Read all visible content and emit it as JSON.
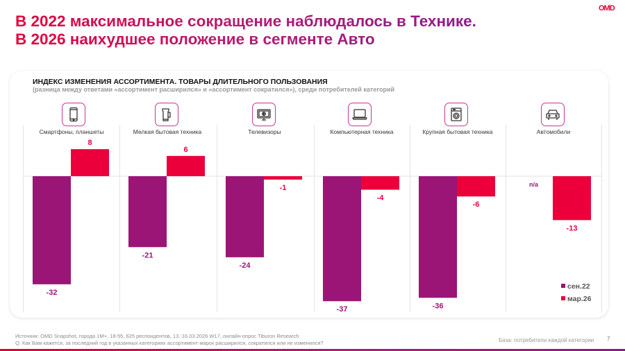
{
  "header": {
    "title_line1": "В 2022 максимальное сокращение наблюдалось в Технике.",
    "title_line2": "В 2026 наихудшее положение в сегменте Авто",
    "logo": "OMD"
  },
  "colors": {
    "sep22": "#9b1576",
    "mar26": "#ec003c",
    "icon_border": "#c7378f"
  },
  "chart_data": {
    "type": "bar",
    "title": "ИНДЕКС ИЗМЕНЕНИЯ АССОРТИМЕНТА. ТОВАРЫ ДЛИТЕЛЬНОГО ПОЛЬЗОВАНИЯ",
    "subtitle": "(разница между ответами «ассортимент расширился» и «ассортимент сократился»), среди потребителей категорий",
    "categories": [
      "Смартфоны, планшеты",
      "Мелкая бытовая техника",
      "Телевизоры",
      "Компьютерная техника",
      "Крупная бытовая техника",
      "Автомобили"
    ],
    "category_icons": [
      "smartphone-icon",
      "kettle-icon",
      "tv-icon",
      "laptop-icon",
      "washing-machine-icon",
      "car-icon"
    ],
    "series": [
      {
        "name": "сен.22",
        "values": [
          -32,
          -21,
          -24,
          -37,
          -36,
          null
        ],
        "labels": [
          "-32",
          "-21",
          "-24",
          "-37",
          "-36",
          "n/a"
        ]
      },
      {
        "name": "мар.26",
        "values": [
          8,
          6,
          -1,
          -4,
          -6,
          -13
        ],
        "labels": [
          "8",
          "6",
          "-1",
          "-4",
          "-6",
          "-13"
        ]
      }
    ],
    "xlabel": "",
    "ylabel": "",
    "ylim": [
      -40,
      10
    ],
    "grid": false,
    "legend": "bottom-right"
  },
  "footer": {
    "source": "Источник: OMD Snapshot, города 1М+, 18-55, 625  респондентов, 13.-16.03.2026 W17, онлайн-опрос Tiburon Research",
    "question": "Q: Как Вам кажется, за последний год в указанных категориях ассортимент марок расширился, сократился или не изменился?",
    "base": "База: потребители каждой категории",
    "page": "7"
  }
}
